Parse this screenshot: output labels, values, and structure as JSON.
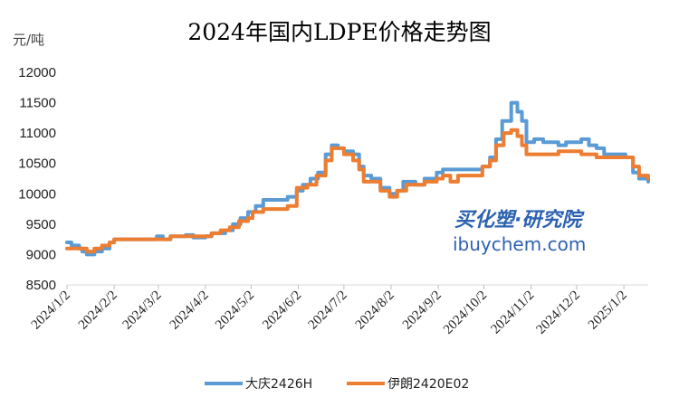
{
  "chart_data": {
    "type": "line",
    "title": "2024年国内LDPE价格走势图",
    "ylabel": "元/吨",
    "xlabel": "",
    "ylim": [
      8500,
      12000
    ],
    "yticks": [
      8500,
      9000,
      9500,
      10000,
      10500,
      11000,
      11500,
      12000
    ],
    "xlim": [
      "2024-01-02",
      "2025-01-18"
    ],
    "xticks": [
      "2024/1/2",
      "2024/2/2",
      "2024/3/2",
      "2024/4/2",
      "2024/5/2",
      "2024/6/2",
      "2024/7/2",
      "2024/8/2",
      "2024/9/2",
      "2024/10/2",
      "2024/11/2",
      "2024/12/2",
      "2025/1/2"
    ],
    "grid": false,
    "legend_position": "bottom",
    "watermark": [
      "买化塑·研究院",
      "ibuychem.com"
    ],
    "series": [
      {
        "name": "大庆2426H",
        "color": "#5b9bd5",
        "points": [
          [
            "2024-01-02",
            9200
          ],
          [
            "2024-01-05",
            9150
          ],
          [
            "2024-01-10",
            9100
          ],
          [
            "2024-01-12",
            9050
          ],
          [
            "2024-01-15",
            9000
          ],
          [
            "2024-01-20",
            9050
          ],
          [
            "2024-01-25",
            9100
          ],
          [
            "2024-01-30",
            9200
          ],
          [
            "2024-02-02",
            9250
          ],
          [
            "2024-02-20",
            9250
          ],
          [
            "2024-02-25",
            9250
          ],
          [
            "2024-03-01",
            9300
          ],
          [
            "2024-03-05",
            9250
          ],
          [
            "2024-03-10",
            9300
          ],
          [
            "2024-03-15",
            9300
          ],
          [
            "2024-03-20",
            9320
          ],
          [
            "2024-03-25",
            9280
          ],
          [
            "2024-04-02",
            9300
          ],
          [
            "2024-04-06",
            9350
          ],
          [
            "2024-04-10",
            9350
          ],
          [
            "2024-04-15",
            9400
          ],
          [
            "2024-04-20",
            9500
          ],
          [
            "2024-04-25",
            9600
          ],
          [
            "2024-04-30",
            9700
          ],
          [
            "2024-05-05",
            9800
          ],
          [
            "2024-05-10",
            9900
          ],
          [
            "2024-05-20",
            9900
          ],
          [
            "2024-05-26",
            9950
          ],
          [
            "2024-06-01",
            10050
          ],
          [
            "2024-06-05",
            10150
          ],
          [
            "2024-06-10",
            10250
          ],
          [
            "2024-06-15",
            10350
          ],
          [
            "2024-06-20",
            10650
          ],
          [
            "2024-06-24",
            10800
          ],
          [
            "2024-06-28",
            10750
          ],
          [
            "2024-07-02",
            10700
          ],
          [
            "2024-07-08",
            10650
          ],
          [
            "2024-07-12",
            10450
          ],
          [
            "2024-07-15",
            10300
          ],
          [
            "2024-07-20",
            10250
          ],
          [
            "2024-07-26",
            10100
          ],
          [
            "2024-08-01",
            10000
          ],
          [
            "2024-08-06",
            10050
          ],
          [
            "2024-08-10",
            10200
          ],
          [
            "2024-08-18",
            10150
          ],
          [
            "2024-08-24",
            10250
          ],
          [
            "2024-09-01",
            10350
          ],
          [
            "2024-09-05",
            10400
          ],
          [
            "2024-09-15",
            10400
          ],
          [
            "2024-09-25",
            10400
          ],
          [
            "2024-10-01",
            10450
          ],
          [
            "2024-10-06",
            10600
          ],
          [
            "2024-10-10",
            10900
          ],
          [
            "2024-10-14",
            11200
          ],
          [
            "2024-10-18",
            11200
          ],
          [
            "2024-10-20",
            11500
          ],
          [
            "2024-10-24",
            11350
          ],
          [
            "2024-10-27",
            11200
          ],
          [
            "2024-10-30",
            10850
          ],
          [
            "2024-11-04",
            10900
          ],
          [
            "2024-11-10",
            10850
          ],
          [
            "2024-11-15",
            10850
          ],
          [
            "2024-11-20",
            10800
          ],
          [
            "2024-11-25",
            10850
          ],
          [
            "2024-12-01",
            10850
          ],
          [
            "2024-12-05",
            10900
          ],
          [
            "2024-12-10",
            10800
          ],
          [
            "2024-12-15",
            10750
          ],
          [
            "2024-12-20",
            10650
          ],
          [
            "2024-12-25",
            10650
          ],
          [
            "2025-01-03",
            10600
          ],
          [
            "2025-01-08",
            10350
          ],
          [
            "2025-01-12",
            10250
          ],
          [
            "2025-01-18",
            10200
          ]
        ]
      },
      {
        "name": "伊朗2420E02",
        "color": "#ed7d31",
        "points": [
          [
            "2024-01-02",
            9100
          ],
          [
            "2024-01-10",
            9100
          ],
          [
            "2024-01-15",
            9050
          ],
          [
            "2024-01-20",
            9100
          ],
          [
            "2024-01-25",
            9150
          ],
          [
            "2024-01-30",
            9200
          ],
          [
            "2024-02-02",
            9250
          ],
          [
            "2024-02-15",
            9250
          ],
          [
            "2024-02-25",
            9250
          ],
          [
            "2024-03-01",
            9250
          ],
          [
            "2024-03-05",
            9250
          ],
          [
            "2024-03-10",
            9300
          ],
          [
            "2024-03-15",
            9300
          ],
          [
            "2024-03-20",
            9300
          ],
          [
            "2024-03-25",
            9300
          ],
          [
            "2024-04-02",
            9300
          ],
          [
            "2024-04-06",
            9350
          ],
          [
            "2024-04-12",
            9400
          ],
          [
            "2024-04-18",
            9450
          ],
          [
            "2024-04-24",
            9550
          ],
          [
            "2024-04-30",
            9600
          ],
          [
            "2024-05-03",
            9700
          ],
          [
            "2024-05-10",
            9750
          ],
          [
            "2024-05-20",
            9750
          ],
          [
            "2024-05-26",
            9800
          ],
          [
            "2024-06-01",
            10100
          ],
          [
            "2024-06-08",
            10150
          ],
          [
            "2024-06-14",
            10300
          ],
          [
            "2024-06-20",
            10550
          ],
          [
            "2024-06-24",
            10750
          ],
          [
            "2024-06-28",
            10750
          ],
          [
            "2024-07-02",
            10650
          ],
          [
            "2024-07-08",
            10550
          ],
          [
            "2024-07-12",
            10400
          ],
          [
            "2024-07-15",
            10200
          ],
          [
            "2024-07-20",
            10200
          ],
          [
            "2024-07-26",
            10050
          ],
          [
            "2024-08-01",
            9950
          ],
          [
            "2024-08-06",
            10050
          ],
          [
            "2024-08-12",
            10150
          ],
          [
            "2024-08-18",
            10150
          ],
          [
            "2024-08-24",
            10200
          ],
          [
            "2024-09-01",
            10250
          ],
          [
            "2024-09-05",
            10300
          ],
          [
            "2024-09-10",
            10200
          ],
          [
            "2024-09-15",
            10300
          ],
          [
            "2024-09-25",
            10300
          ],
          [
            "2024-10-01",
            10450
          ],
          [
            "2024-10-06",
            10550
          ],
          [
            "2024-10-10",
            10800
          ],
          [
            "2024-10-15",
            11000
          ],
          [
            "2024-10-20",
            11050
          ],
          [
            "2024-10-24",
            10950
          ],
          [
            "2024-10-27",
            10800
          ],
          [
            "2024-10-30",
            10650
          ],
          [
            "2024-11-05",
            10650
          ],
          [
            "2024-11-15",
            10650
          ],
          [
            "2024-11-20",
            10700
          ],
          [
            "2024-12-01",
            10700
          ],
          [
            "2024-12-05",
            10650
          ],
          [
            "2024-12-10",
            10650
          ],
          [
            "2024-12-15",
            10600
          ],
          [
            "2024-12-20",
            10600
          ],
          [
            "2025-01-03",
            10600
          ],
          [
            "2025-01-08",
            10450
          ],
          [
            "2025-01-12",
            10300
          ],
          [
            "2025-01-18",
            10250
          ]
        ]
      }
    ]
  }
}
